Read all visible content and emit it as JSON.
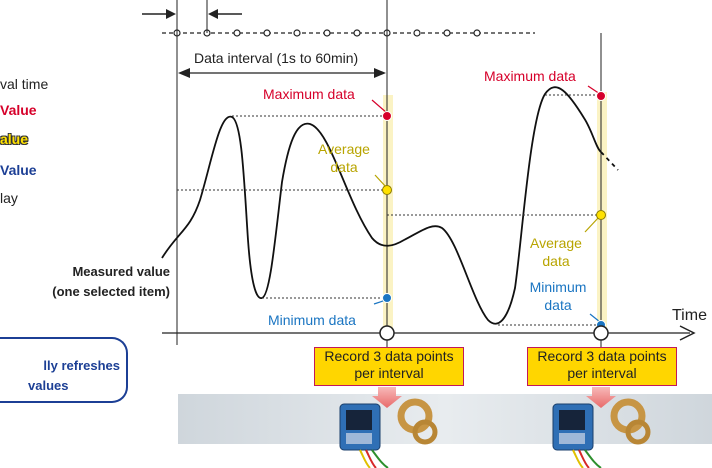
{
  "legend": {
    "interval_time": "val time",
    "max_value": "Value",
    "avg_value": "alue",
    "min_value": "Value",
    "display": "lay"
  },
  "interval_label": "Data interval (1s to 60min)",
  "measured_value_label": [
    "Measured value",
    "(one selected item)"
  ],
  "refresh_label": [
    "lly refreshes",
    "values"
  ],
  "time_axis_label": "Time",
  "left_interval": {
    "maximum": "Maximum data",
    "average": [
      "Average",
      "data"
    ],
    "minimum": "Minimum data",
    "record": [
      "Record 3 data points",
      "per interval"
    ]
  },
  "right_interval": {
    "maximum": "Maximum data",
    "average": [
      "Average",
      "data"
    ],
    "minimum": [
      "Minimum",
      "data"
    ],
    "record": [
      "Record 3 data points",
      "per interval"
    ]
  },
  "colors": {
    "maximum": "#d6002a",
    "average": "#b8a400",
    "minimum": "#1a75c2",
    "legend_blue": "#1c3f95",
    "record_fill": "#ffd600",
    "record_border": "#c2185b",
    "interval_band": "#fbf3c4"
  },
  "icons": [
    "logger-device-icon",
    "current-clamp-icon",
    "down-arrow-icon"
  ]
}
